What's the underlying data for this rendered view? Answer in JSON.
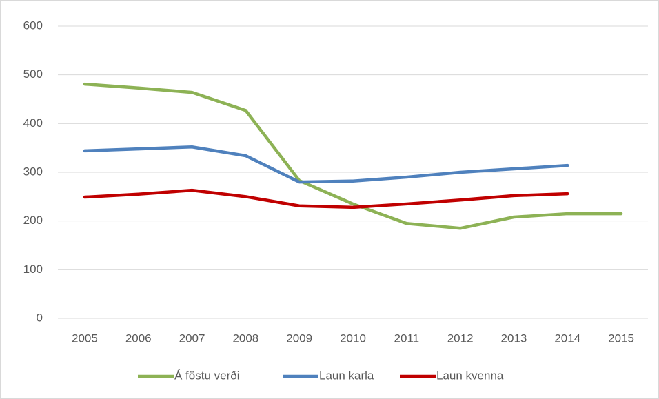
{
  "chart_data": {
    "type": "line",
    "categories": [
      "2005",
      "2006",
      "2007",
      "2008",
      "2009",
      "2010",
      "2011",
      "2012",
      "2013",
      "2014",
      "2015"
    ],
    "series": [
      {
        "name": "Á föstu verði",
        "color": "#8db255",
        "values": [
          481,
          473,
          464,
          427,
          283,
          235,
          195,
          185,
          208,
          215,
          215
        ]
      },
      {
        "name": "Laun karla",
        "color": "#4f81bd",
        "values": [
          344,
          348,
          352,
          334,
          280,
          282,
          290,
          300,
          307,
          314,
          null
        ]
      },
      {
        "name": "Laun kvenna",
        "color": "#c00000",
        "values": [
          249,
          255,
          263,
          250,
          231,
          228,
          235,
          243,
          252,
          256,
          null
        ]
      }
    ],
    "ylim": [
      0,
      600
    ],
    "yticks": [
      0,
      100,
      200,
      300,
      400,
      500,
      600
    ],
    "grid": true,
    "legend": "bottom"
  }
}
